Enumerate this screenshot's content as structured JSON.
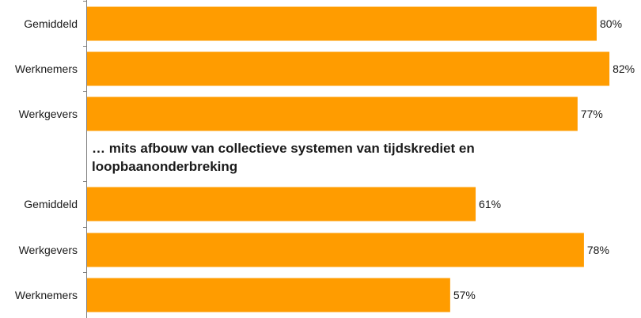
{
  "colors": {
    "bar": "#FF9C00",
    "axis": "#808080",
    "text": "#1a1a1a"
  },
  "chart_data": [
    {
      "type": "bar",
      "orientation": "horizontal",
      "title": "",
      "categories": [
        "Gemiddeld",
        "Werknemers",
        "Werkgevers"
      ],
      "values": [
        80,
        82,
        77
      ],
      "value_labels": [
        "80%",
        "82%",
        "77%"
      ],
      "xlim": [
        0,
        100
      ]
    },
    {
      "type": "bar",
      "orientation": "horizontal",
      "title": "… mits afbouw van collectieve systemen van tijdskrediet en loopbaanonderbreking",
      "categories": [
        "Gemiddeld",
        "Werkgevers",
        "Werknemers"
      ],
      "values": [
        61,
        78,
        57
      ],
      "value_labels": [
        "61%",
        "78%",
        "57%"
      ],
      "xlim": [
        0,
        100
      ]
    }
  ]
}
